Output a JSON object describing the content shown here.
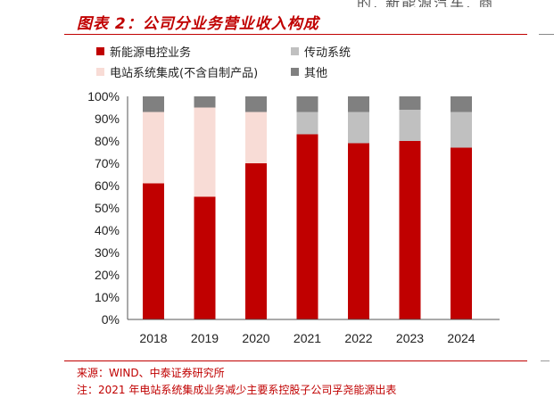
{
  "page_top_fragment": "的, 新能源汽车, 商",
  "title": "图表 2：公司分业务营业收入构成",
  "legend": [
    {
      "label": "新能源电控业务",
      "color": "#c00000"
    },
    {
      "label": "传动系统",
      "color": "#c0c0c0"
    },
    {
      "label": "电站系统集成(不含自制产品)",
      "color": "#f8dcd6"
    },
    {
      "label": "其他",
      "color": "#808080"
    }
  ],
  "chart_data": {
    "type": "bar",
    "stacked": true,
    "categories": [
      "2018",
      "2019",
      "2020",
      "2021",
      "2022",
      "2023",
      "2024"
    ],
    "series": [
      {
        "name": "新能源电控业务",
        "color": "#c00000",
        "values": [
          61,
          55,
          70,
          83,
          79,
          80,
          77
        ]
      },
      {
        "name": "电站系统集成(不含自制产品)",
        "color": "#f8dcd6",
        "values": [
          32,
          40,
          23,
          0,
          0,
          0,
          0
        ]
      },
      {
        "name": "传动系统",
        "color": "#c0c0c0",
        "values": [
          0,
          0,
          0,
          10,
          14,
          14,
          16
        ]
      },
      {
        "name": "其他",
        "color": "#808080",
        "values": [
          7,
          5,
          7,
          7,
          7,
          6,
          7
        ]
      }
    ],
    "ylim": [
      0,
      100
    ],
    "yticks": [
      "0%",
      "10%",
      "20%",
      "30%",
      "40%",
      "50%",
      "60%",
      "70%",
      "80%",
      "90%",
      "100%"
    ],
    "legend_position": "top"
  },
  "footer": {
    "source": "来源：WIND、中泰证券研究所",
    "note": "注：2021 年电站系统集成业务减少主要系控股子公司孚尧能源出表"
  }
}
